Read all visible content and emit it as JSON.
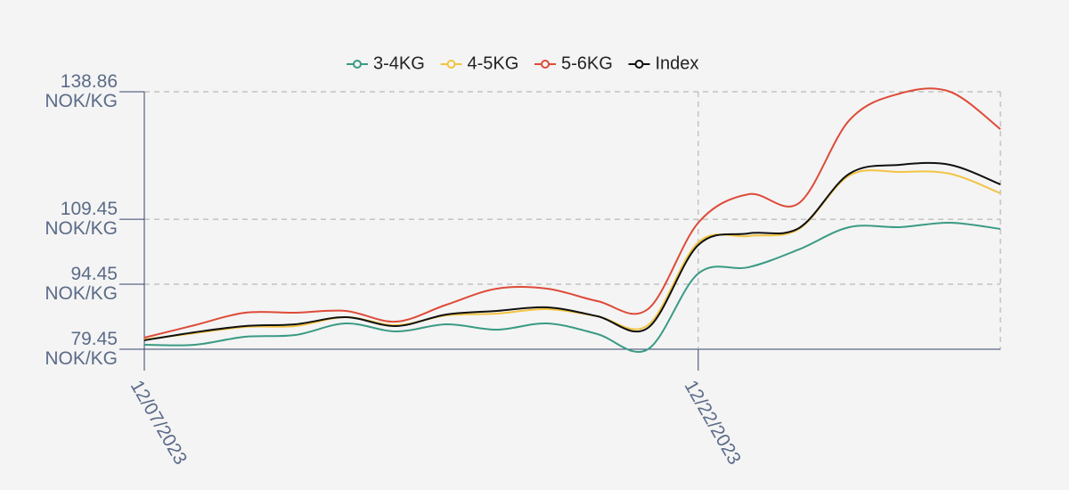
{
  "chart_data": {
    "type": "line",
    "categories": [
      "12/07/2023",
      null,
      null,
      null,
      null,
      null,
      null,
      null,
      null,
      null,
      null,
      "12/22/2023",
      null,
      null,
      null,
      null,
      null,
      null
    ],
    "series": [
      {
        "name": "3-4KG",
        "color": "#3a9a84",
        "values": [
          80.48,
          80.48,
          82.33,
          82.74,
          85.41,
          83.56,
          85.21,
          83.97,
          85.41,
          82.95,
          79.45,
          96.93,
          98.37,
          102.48,
          107.62,
          107.62,
          108.64,
          107.21
        ]
      },
      {
        "name": "4-5KG",
        "color": "#f2c443",
        "values": [
          81.71,
          83.15,
          84.59,
          84.8,
          86.85,
          85.0,
          87.26,
          87.67,
          88.7,
          87.06,
          85.0,
          104.12,
          105.56,
          107.21,
          119.54,
          120.36,
          119.95,
          115.43
        ]
      },
      {
        "name": "5-6KG",
        "color": "#de4b39",
        "values": [
          82.12,
          85.0,
          87.88,
          87.88,
          88.29,
          85.82,
          89.73,
          93.43,
          93.43,
          90.55,
          88.7,
          108.64,
          115.22,
          113.17,
          132.29,
          138.45,
          138.86,
          130.23
        ]
      },
      {
        "name": "Index",
        "color": "#111111",
        "values": [
          81.51,
          83.36,
          84.8,
          85.21,
          86.85,
          84.8,
          87.47,
          88.29,
          89.11,
          87.06,
          84.38,
          103.5,
          106.18,
          107.41,
          119.95,
          122.01,
          122.01,
          117.49
        ]
      }
    ],
    "ylim": [
      79.45,
      138.86
    ],
    "yticks": [
      {
        "value": 79.45,
        "label": "79.45\nNOK/KG"
      },
      {
        "value": 94.45,
        "label": "94.45\nNOK/KG"
      },
      {
        "value": 109.45,
        "label": "109.45\nNOK/KG"
      },
      {
        "value": 138.86,
        "label": "138.86\nNOK/KG"
      }
    ],
    "grid": true,
    "legend": "top"
  }
}
